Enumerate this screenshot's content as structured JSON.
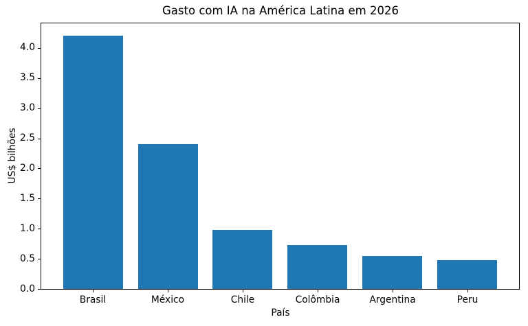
{
  "chart_data": {
    "type": "bar",
    "title": "Gasto com IA na América Latina em 2026",
    "xlabel": "País",
    "ylabel": "US$ bilhões",
    "categories": [
      "Brasil",
      "México",
      "Chile",
      "Colômbia",
      "Argentina",
      "Peru"
    ],
    "values": [
      4.2,
      2.4,
      0.98,
      0.73,
      0.55,
      0.48
    ],
    "bar_color": "#1f77b4",
    "ylim": [
      0,
      4.41
    ],
    "yticks": [
      0.0,
      0.5,
      1.0,
      1.5,
      2.0,
      2.5,
      3.0,
      3.5,
      4.0
    ],
    "ytick_labels": [
      "0.0",
      "0.5",
      "1.0",
      "1.5",
      "2.0",
      "2.5",
      "3.0",
      "3.5",
      "4.0"
    ],
    "grid": false,
    "legend": null,
    "bar_width_fraction": 0.8
  }
}
